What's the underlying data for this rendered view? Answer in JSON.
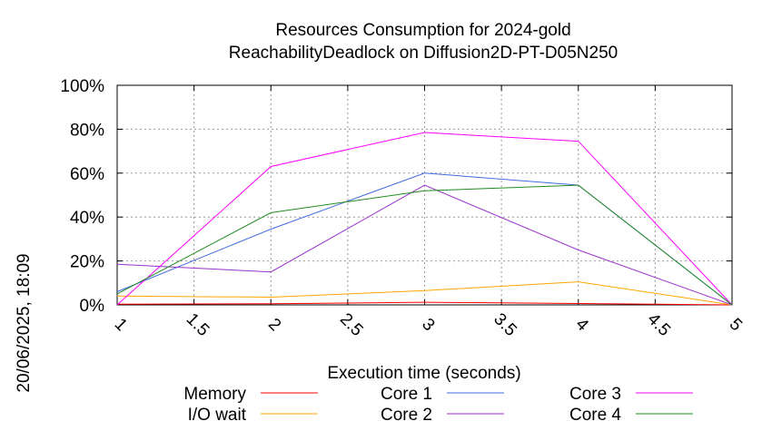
{
  "chart_data": {
    "type": "line",
    "title": "Resources Consumption for 2024-gold",
    "subtitle": "ReachabilityDeadlock on Diffusion2D-PT-D05N250",
    "xlabel": "Execution time (seconds)",
    "ylabel": "",
    "side_label": "20/06/2025, 18:09",
    "xlim": [
      1,
      5
    ],
    "ylim": [
      0,
      100
    ],
    "x_ticks": [
      "1",
      "1.5",
      "2",
      "2.5",
      "3",
      "3.5",
      "4",
      "4.5",
      "5"
    ],
    "y_ticks": [
      "0%",
      "20%",
      "40%",
      "60%",
      "80%",
      "100%"
    ],
    "grid": true,
    "legend_position": "bottom",
    "series": [
      {
        "name": "Memory",
        "color": "#ff0000",
        "x": [
          1,
          2,
          3,
          4,
          5
        ],
        "values": [
          0.3,
          0.5,
          1.2,
          0.6,
          0
        ]
      },
      {
        "name": "I/O wait",
        "color": "#ffa500",
        "x": [
          1,
          2,
          3,
          4,
          5
        ],
        "values": [
          4,
          3.5,
          6.5,
          10.5,
          0
        ]
      },
      {
        "name": "Core 1",
        "color": "#4169e1",
        "x": [
          1,
          2,
          3,
          4,
          5
        ],
        "values": [
          6,
          34.5,
          60,
          54.5,
          0
        ]
      },
      {
        "name": "Core 2",
        "color": "#9932cc",
        "x": [
          1,
          2,
          3,
          4,
          5
        ],
        "values": [
          18.5,
          15,
          54.5,
          25,
          0
        ]
      },
      {
        "name": "Core 3",
        "color": "#ff00ff",
        "x": [
          1,
          2,
          3,
          4,
          5
        ],
        "values": [
          0,
          63,
          78.5,
          74.5,
          0
        ]
      },
      {
        "name": "Core 4",
        "color": "#228b22",
        "x": [
          1,
          2,
          3,
          4,
          5
        ],
        "values": [
          5,
          42,
          52,
          54.5,
          0
        ]
      }
    ]
  }
}
